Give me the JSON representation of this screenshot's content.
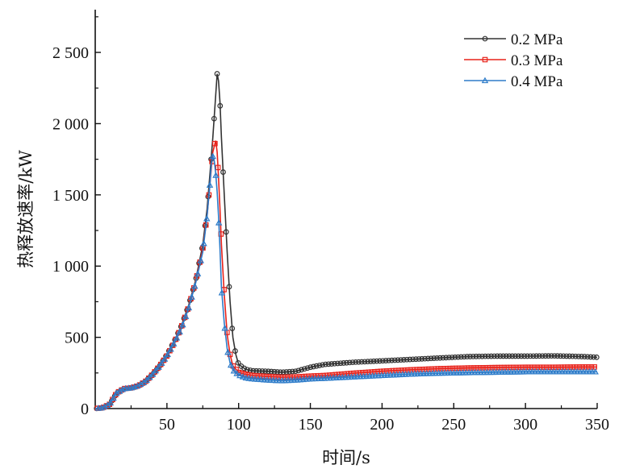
{
  "chart_data": {
    "type": "line",
    "title": "",
    "xlabel": "时间/s",
    "ylabel": "热释放速率/kW",
    "xlim": [
      0,
      350
    ],
    "ylim": [
      0,
      2800
    ],
    "x_ticks": [
      50,
      100,
      150,
      200,
      250,
      300,
      350
    ],
    "x_tick_labels": [
      "50",
      "100",
      "150",
      "200",
      "250",
      "300",
      "350"
    ],
    "y_ticks": [
      0,
      500,
      1000,
      1500,
      2000,
      2500
    ],
    "y_tick_labels": [
      "0",
      "500",
      "1 000",
      "1 500",
      "2 000",
      "2 500"
    ],
    "grid": false,
    "legend_position": "top-right",
    "series": [
      {
        "name": "0.2 MPa",
        "color": "#333333",
        "marker": "circle",
        "points": [
          [
            0,
            0
          ],
          [
            5,
            5
          ],
          [
            10,
            30
          ],
          [
            15,
            110
          ],
          [
            20,
            140
          ],
          [
            25,
            145
          ],
          [
            30,
            160
          ],
          [
            35,
            190
          ],
          [
            40,
            240
          ],
          [
            45,
            300
          ],
          [
            50,
            380
          ],
          [
            55,
            470
          ],
          [
            60,
            580
          ],
          [
            65,
            720
          ],
          [
            70,
            900
          ],
          [
            75,
            1150
          ],
          [
            78,
            1400
          ],
          [
            80,
            1650
          ],
          [
            82,
            1900
          ],
          [
            84,
            2200
          ],
          [
            85,
            2350
          ],
          [
            86,
            2300
          ],
          [
            87,
            2150
          ],
          [
            88,
            1900
          ],
          [
            90,
            1500
          ],
          [
            92,
            1100
          ],
          [
            94,
            750
          ],
          [
            96,
            500
          ],
          [
            98,
            380
          ],
          [
            100,
            310
          ],
          [
            105,
            275
          ],
          [
            110,
            265
          ],
          [
            120,
            262
          ],
          [
            130,
            255
          ],
          [
            140,
            262
          ],
          [
            150,
            290
          ],
          [
            160,
            310
          ],
          [
            180,
            325
          ],
          [
            200,
            335
          ],
          [
            220,
            345
          ],
          [
            240,
            355
          ],
          [
            260,
            365
          ],
          [
            280,
            368
          ],
          [
            300,
            368
          ],
          [
            320,
            370
          ],
          [
            340,
            365
          ],
          [
            350,
            360
          ]
        ]
      },
      {
        "name": "0.3 MPa",
        "color": "#e8221a",
        "marker": "square",
        "points": [
          [
            0,
            0
          ],
          [
            5,
            5
          ],
          [
            10,
            30
          ],
          [
            15,
            110
          ],
          [
            20,
            140
          ],
          [
            25,
            145
          ],
          [
            30,
            160
          ],
          [
            35,
            190
          ],
          [
            40,
            240
          ],
          [
            45,
            300
          ],
          [
            50,
            370
          ],
          [
            55,
            460
          ],
          [
            60,
            570
          ],
          [
            65,
            710
          ],
          [
            70,
            890
          ],
          [
            75,
            1120
          ],
          [
            78,
            1350
          ],
          [
            80,
            1580
          ],
          [
            82,
            1800
          ],
          [
            84,
            1880
          ],
          [
            85,
            1800
          ],
          [
            86,
            1620
          ],
          [
            87,
            1400
          ],
          [
            88,
            1150
          ],
          [
            90,
            800
          ],
          [
            92,
            520
          ],
          [
            94,
            380
          ],
          [
            96,
            300
          ],
          [
            100,
            255
          ],
          [
            105,
            240
          ],
          [
            110,
            232
          ],
          [
            120,
            225
          ],
          [
            130,
            220
          ],
          [
            140,
            222
          ],
          [
            150,
            228
          ],
          [
            160,
            232
          ],
          [
            180,
            248
          ],
          [
            200,
            262
          ],
          [
            220,
            272
          ],
          [
            240,
            280
          ],
          [
            260,
            285
          ],
          [
            280,
            288
          ],
          [
            300,
            290
          ],
          [
            320,
            290
          ],
          [
            340,
            292
          ],
          [
            350,
            292
          ]
        ]
      },
      {
        "name": "0.4 MPa",
        "color": "#2e7cc9",
        "marker": "triangle",
        "points": [
          [
            0,
            0
          ],
          [
            5,
            5
          ],
          [
            10,
            30
          ],
          [
            15,
            110
          ],
          [
            20,
            140
          ],
          [
            25,
            145
          ],
          [
            30,
            160
          ],
          [
            35,
            190
          ],
          [
            40,
            240
          ],
          [
            45,
            300
          ],
          [
            50,
            370
          ],
          [
            55,
            460
          ],
          [
            60,
            560
          ],
          [
            65,
            700
          ],
          [
            70,
            880
          ],
          [
            75,
            1100
          ],
          [
            78,
            1350
          ],
          [
            80,
            1580
          ],
          [
            81,
            1720
          ],
          [
            82,
            1770
          ],
          [
            83,
            1740
          ],
          [
            84,
            1650
          ],
          [
            85,
            1520
          ],
          [
            86,
            1350
          ],
          [
            87,
            1120
          ],
          [
            88,
            850
          ],
          [
            90,
            600
          ],
          [
            92,
            420
          ],
          [
            94,
            320
          ],
          [
            96,
            270
          ],
          [
            100,
            235
          ],
          [
            105,
            215
          ],
          [
            110,
            208
          ],
          [
            120,
            200
          ],
          [
            130,
            195
          ],
          [
            140,
            200
          ],
          [
            150,
            208
          ],
          [
            160,
            212
          ],
          [
            180,
            222
          ],
          [
            200,
            232
          ],
          [
            220,
            242
          ],
          [
            240,
            248
          ],
          [
            260,
            252
          ],
          [
            280,
            255
          ],
          [
            300,
            258
          ],
          [
            320,
            258
          ],
          [
            340,
            258
          ],
          [
            350,
            258
          ]
        ]
      }
    ]
  }
}
